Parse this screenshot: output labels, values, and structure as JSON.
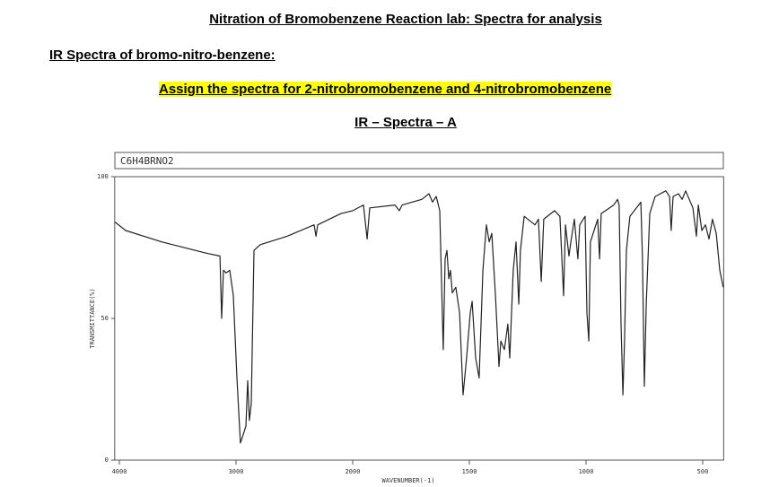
{
  "document": {
    "title": "Nitration of Bromobenzene Reaction lab: Spectra for analysis",
    "section_heading": "IR Spectra of bromo-nitro-benzene:",
    "instruction": "Assign the spectra for 2-nitrobromobenzene and 4-nitrobromobenzene",
    "spectrum_label": "IR – Spectra – A"
  },
  "chart_data": {
    "type": "line",
    "formula": "C6H4BRNO2",
    "xlabel": "WAVENUMBER(-1)",
    "ylabel": "TRANSMITTANCE(%)",
    "x": [
      4038,
      3946,
      3638,
      3254,
      3138,
      3123,
      3108,
      3085,
      3054,
      3023,
      2992,
      2962,
      2931,
      2915,
      2900,
      2885,
      2869,
      2846,
      2792,
      2562,
      2331,
      2315,
      2300,
      2100,
      2000,
      1954,
      1938,
      1927,
      1819,
      1800,
      1788,
      1704,
      1673,
      1658,
      1642,
      1627,
      1612,
      1604,
      1596,
      1588,
      1581,
      1573,
      1558,
      1542,
      1527,
      1512,
      1496,
      1488,
      1473,
      1458,
      1442,
      1427,
      1415,
      1404,
      1388,
      1373,
      1365,
      1350,
      1335,
      1327,
      1312,
      1300,
      1288,
      1281,
      1265,
      1219,
      1204,
      1192,
      1181,
      1135,
      1112,
      1096,
      1088,
      1073,
      1065,
      1050,
      1035,
      1027,
      1004,
      996,
      988,
      981,
      950,
      942,
      935,
      881,
      865,
      858,
      850,
      842,
      835,
      827,
      812,
      765,
      758,
      750,
      742,
      727,
      704,
      658,
      642,
      635,
      627,
      604,
      588,
      573,
      542,
      527,
      519,
      504,
      488,
      473,
      458,
      442,
      427,
      412
    ],
    "values": [
      84,
      81,
      77,
      73,
      72,
      50,
      67,
      66,
      67,
      58,
      29,
      6,
      10,
      12,
      28,
      14,
      20,
      74,
      76,
      79,
      83,
      79,
      83,
      87,
      88,
      90,
      78,
      89,
      90,
      88,
      90,
      92,
      94,
      91,
      93,
      88,
      39,
      71,
      74,
      64,
      67,
      59,
      61,
      52,
      23,
      36,
      52,
      56,
      36,
      29,
      67,
      83,
      77,
      80,
      58,
      33,
      42,
      39,
      48,
      36,
      67,
      77,
      55,
      74,
      86,
      83,
      85,
      63,
      85,
      88,
      86,
      58,
      83,
      72,
      77,
      85,
      71,
      83,
      86,
      52,
      42,
      77,
      85,
      71,
      87,
      90,
      92,
      90,
      48,
      23,
      42,
      74,
      86,
      91,
      71,
      26,
      55,
      87,
      93,
      95,
      93,
      81,
      93,
      94,
      92,
      95,
      89,
      79,
      90,
      81,
      83,
      78,
      85,
      80,
      67,
      61
    ],
    "color": "#222222",
    "xlim": [
      4040,
      410
    ],
    "xticks": [
      4000,
      3000,
      2000,
      1500,
      1000,
      500
    ],
    "ylim": [
      0,
      100
    ],
    "yticks": [
      0,
      50,
      100
    ]
  }
}
